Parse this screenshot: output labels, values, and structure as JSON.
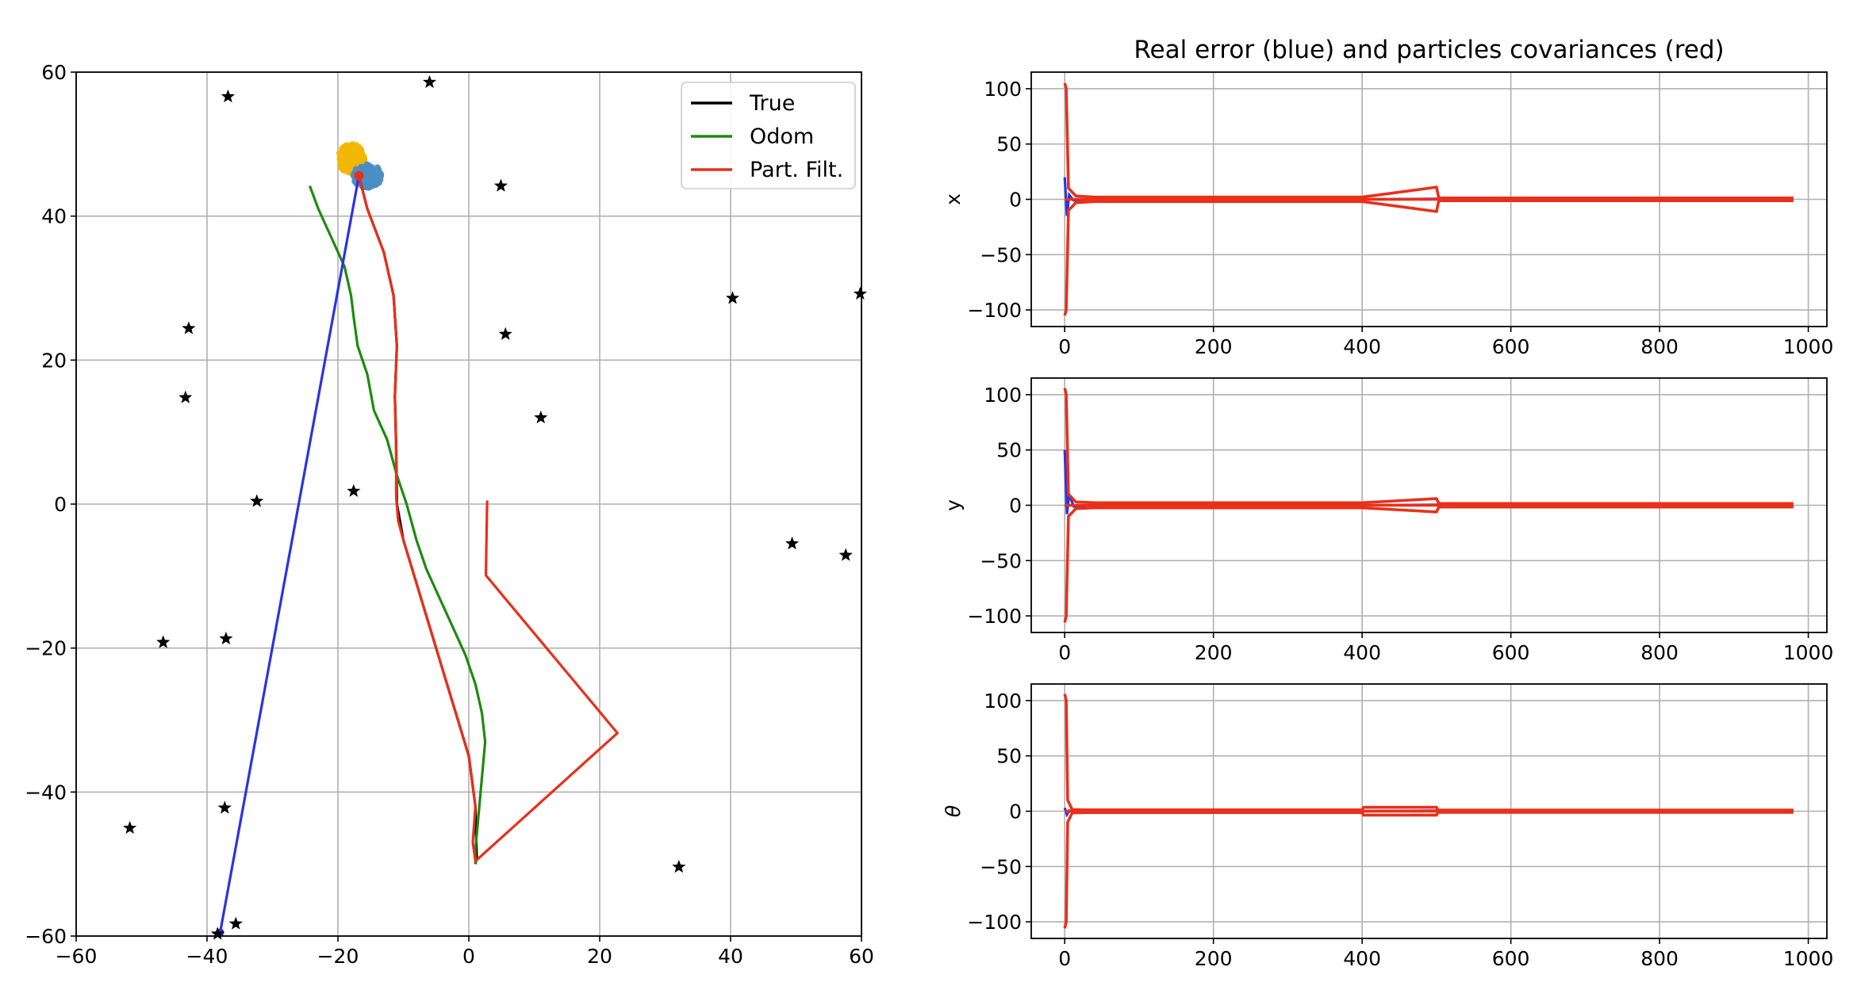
{
  "chart_data": [
    {
      "type": "scatter",
      "xlim": [
        -60,
        60
      ],
      "ylim": [
        -60,
        60
      ],
      "xticks": [
        -60,
        -40,
        -20,
        0,
        20,
        40,
        60
      ],
      "yticks": [
        -60,
        -40,
        -20,
        0,
        20,
        40,
        60
      ],
      "grid": true,
      "legend_position": "top-right",
      "landmarks": [
        [
          -36.8,
          56.6
        ],
        [
          -6.0,
          58.6
        ],
        [
          4.9,
          44.2
        ],
        [
          -42.8,
          24.4
        ],
        [
          40.3,
          28.6
        ],
        [
          59.8,
          29.2
        ],
        [
          5.6,
          23.6
        ],
        [
          -43.3,
          14.8
        ],
        [
          11.0,
          12.0
        ],
        [
          -32.4,
          0.4
        ],
        [
          -17.6,
          1.8
        ],
        [
          49.4,
          -5.5
        ],
        [
          57.6,
          -7.1
        ],
        [
          -46.7,
          -19.2
        ],
        [
          -37.1,
          -18.7
        ],
        [
          -51.8,
          -45.0
        ],
        [
          -37.3,
          -42.2
        ],
        [
          32.1,
          -50.4
        ],
        [
          -35.6,
          -58.3
        ],
        [
          -38.4,
          -59.7
        ]
      ],
      "series": [
        {
          "name": "True",
          "color": "#000000",
          "points": [
            [
              -16.8,
              45.6
            ],
            [
              -15.5,
              41.0
            ],
            [
              -13.0,
              35.0
            ],
            [
              -11.5,
              29.0
            ],
            [
              -11.0,
              22.0
            ],
            [
              -11.3,
              15.0
            ],
            [
              -11.1,
              8.0
            ],
            [
              -11.0,
              0.0
            ],
            [
              -10.0,
              -5.0
            ],
            [
              -8.0,
              -11.0
            ],
            [
              -6.0,
              -17.0
            ],
            [
              -4.0,
              -23.0
            ],
            [
              -2.0,
              -29.0
            ],
            [
              0.0,
              -35.0
            ],
            [
              1.0,
              -42.0
            ],
            [
              1.2,
              -49.0
            ],
            [
              1.0,
              -50.0
            ]
          ]
        },
        {
          "name": "Odom",
          "color": "#1f8a10",
          "points": [
            [
              -24.3,
              44.2
            ],
            [
              -23.0,
              41.0
            ],
            [
              -21.0,
              37.0
            ],
            [
              -19.0,
              33.0
            ],
            [
              -18.0,
              29.0
            ],
            [
              -17.6,
              26.0
            ],
            [
              -17.0,
              22.0
            ],
            [
              -15.5,
              18.0
            ],
            [
              -14.5,
              13.0
            ],
            [
              -12.5,
              9.0
            ],
            [
              -11.0,
              4.0
            ],
            [
              -9.5,
              0.0
            ],
            [
              -8.0,
              -5.0
            ],
            [
              -6.5,
              -9.0
            ],
            [
              -4.5,
              -13.0
            ],
            [
              -2.5,
              -17.0
            ],
            [
              -0.5,
              -21.0
            ],
            [
              1.0,
              -25.0
            ],
            [
              2.0,
              -29.0
            ],
            [
              2.5,
              -33.0
            ],
            [
              2.0,
              -38.0
            ],
            [
              1.5,
              -43.0
            ],
            [
              1.0,
              -48.0
            ],
            [
              1.0,
              -50.0
            ]
          ]
        },
        {
          "name": "Part. Filt.",
          "color": "#e8301a",
          "points": [
            [
              -16.8,
              45.6
            ],
            [
              -15.5,
              41.0
            ],
            [
              -13.0,
              35.0
            ],
            [
              -11.5,
              29.0
            ],
            [
              -11.0,
              22.0
            ],
            [
              -11.3,
              15.0
            ],
            [
              -11.1,
              8.0
            ],
            [
              -11.1,
              1.0
            ],
            [
              -10.8,
              -2.3
            ],
            [
              -10.0,
              -5.0
            ],
            [
              -8.0,
              -11.0
            ],
            [
              -6.0,
              -17.0
            ],
            [
              -4.0,
              -23.0
            ],
            [
              -2.0,
              -29.0
            ],
            [
              0.0,
              -35.0
            ],
            [
              1.0,
              -42.0
            ],
            [
              0.6,
              -47.0
            ],
            [
              1.0,
              -49.6
            ],
            [
              22.7,
              -31.8
            ],
            [
              2.6,
              -9.9
            ],
            [
              2.8,
              0.5
            ]
          ]
        },
        {
          "color": "#2b34e0",
          "points": [
            [
              -16.8,
              45.6
            ],
            [
              -38.0,
              -59.5
            ]
          ]
        }
      ],
      "particle_clouds": [
        {
          "color": "#f2b705",
          "center": [
            -18.0,
            48.0
          ],
          "spread": [
            2.0,
            2.0
          ]
        },
        {
          "color": "#4a8ec4",
          "center": [
            -15.5,
            45.6
          ],
          "spread": [
            2.2,
            1.6
          ]
        }
      ]
    },
    {
      "type": "line",
      "title": "Real error (blue) and particles covariances (red)",
      "ylabel": "x",
      "xlim": [
        -45,
        1025
      ],
      "ylim": [
        -115,
        115
      ],
      "xticks": [
        0,
        200,
        400,
        600,
        800,
        1000
      ],
      "yticks": [
        -100,
        -50,
        0,
        50,
        100
      ],
      "grid": true,
      "error_color": "#2b34e0",
      "cov_color": "#e8301a",
      "error_spike": [
        20,
        -15
      ],
      "cov_band": [
        [
          0,
          105
        ],
        [
          2,
          100
        ],
        [
          5,
          10
        ],
        [
          15,
          3
        ],
        [
          40,
          2
        ],
        [
          400,
          2
        ],
        [
          500,
          11
        ],
        [
          503,
          1.2
        ],
        [
          980,
          1.2
        ]
      ]
    },
    {
      "type": "line",
      "ylabel": "y",
      "xlim": [
        -45,
        1025
      ],
      "ylim": [
        -115,
        115
      ],
      "xticks": [
        0,
        200,
        400,
        600,
        800,
        1000
      ],
      "yticks": [
        -100,
        -50,
        0,
        50,
        100
      ],
      "grid": true,
      "error_color": "#2b34e0",
      "cov_color": "#e8301a",
      "error_spike": [
        50,
        -8
      ],
      "cov_band": [
        [
          0,
          106
        ],
        [
          2,
          100
        ],
        [
          5,
          10
        ],
        [
          15,
          3
        ],
        [
          40,
          2.3
        ],
        [
          400,
          2.3
        ],
        [
          500,
          6
        ],
        [
          503,
          1.6
        ],
        [
          980,
          1.6
        ]
      ]
    },
    {
      "type": "line",
      "ylabel": "θ",
      "xlim": [
        -45,
        1025
      ],
      "ylim": [
        -115,
        115
      ],
      "xticks": [
        0,
        200,
        400,
        600,
        800,
        1000
      ],
      "yticks": [
        -100,
        -50,
        0,
        50,
        100
      ],
      "grid": true,
      "error_color": "#2b34e0",
      "cov_color": "#e8301a",
      "error_spike": [
        3,
        -3
      ],
      "cov_band": [
        [
          0,
          106
        ],
        [
          2,
          100
        ],
        [
          4,
          10
        ],
        [
          10,
          1.5
        ],
        [
          30,
          1.2
        ],
        [
          400,
          1.2
        ],
        [
          402,
          3.5
        ],
        [
          500,
          3.5
        ],
        [
          502,
          1.0
        ],
        [
          980,
          1.0
        ]
      ]
    }
  ]
}
